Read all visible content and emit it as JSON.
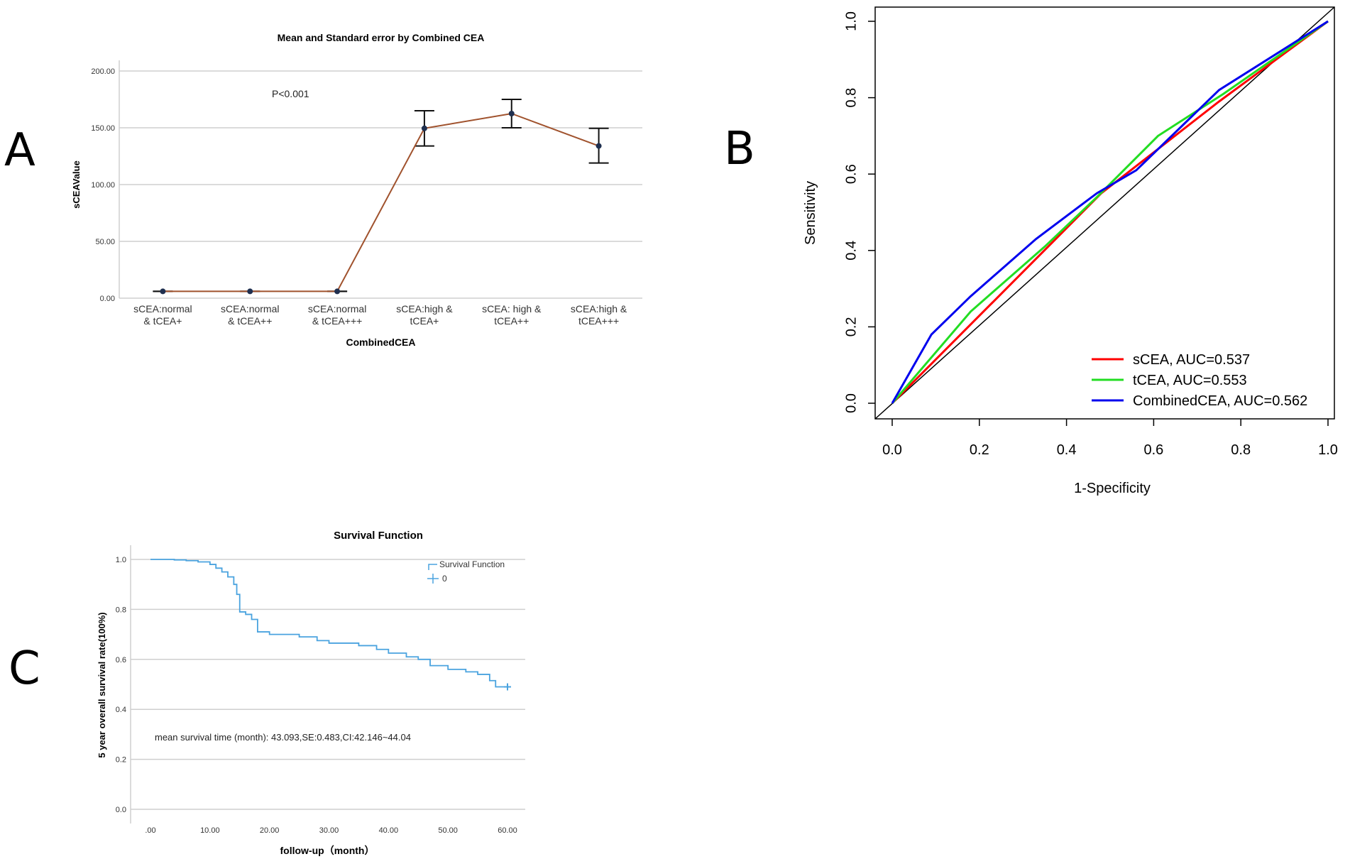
{
  "panels": {
    "a": "A",
    "b": "B",
    "c": "C"
  },
  "chart_data": [
    {
      "id": "A",
      "type": "line",
      "title": "Mean and Standard error by Combined CEA",
      "xlabel": "CombinedCEA",
      "ylabel": "sCEAValue",
      "annotation": "P<0.001",
      "categories": [
        [
          "sCEA:normal",
          "& tCEA+"
        ],
        [
          "sCEA:normal",
          "& tCEA++"
        ],
        [
          "sCEA:normal",
          "& tCEA+++"
        ],
        [
          "sCEA:high &",
          "tCEA+"
        ],
        [
          "sCEA: high &",
          "tCEA++"
        ],
        [
          "sCEA:high &",
          "tCEA+++"
        ]
      ],
      "means": [
        6,
        6,
        6,
        149.5,
        162.5,
        134
      ],
      "lower": [
        6,
        6,
        6,
        134,
        150,
        119
      ],
      "upper": [
        6,
        6,
        6,
        165,
        175,
        149.5
      ],
      "ylim": [
        0,
        200
      ],
      "yticks": [
        0,
        50,
        100,
        150,
        200
      ],
      "ytick_labels": [
        "0.00",
        "50.00",
        "100.00",
        "150.00",
        "200.00"
      ],
      "grid": true,
      "line_color": "#a0522d"
    },
    {
      "id": "B",
      "type": "line",
      "title": "",
      "xlabel": "1-Specificity",
      "ylabel": "Sensitivity",
      "xlim": [
        0,
        1
      ],
      "ylim": [
        0,
        1
      ],
      "xticks": [
        "0.0",
        "0.2",
        "0.4",
        "0.6",
        "0.8",
        "1.0"
      ],
      "yticks": [
        "0.0",
        "0.2",
        "0.4",
        "0.6",
        "0.8",
        "1.0"
      ],
      "legend_position": "bottom-right",
      "series": [
        {
          "name": "sCEA, AUC=0.537",
          "color": "#ff0000",
          "x": [
            0,
            0.48,
            0.75,
            1
          ],
          "y": [
            0,
            0.55,
            0.79,
            1
          ]
        },
        {
          "name": "tCEA, AUC=0.553",
          "color": "#22dd22",
          "x": [
            0,
            0.18,
            0.35,
            0.47,
            0.61,
            0.76,
            1
          ],
          "y": [
            0,
            0.24,
            0.41,
            0.54,
            0.7,
            0.81,
            1
          ]
        },
        {
          "name": "CombinedCEA, AUC=0.562",
          "color": "#0000ee",
          "x": [
            0,
            0.09,
            0.18,
            0.33,
            0.47,
            0.56,
            0.75,
            1
          ],
          "y": [
            0,
            0.18,
            0.28,
            0.43,
            0.55,
            0.61,
            0.82,
            1
          ]
        }
      ],
      "reference_line": {
        "x": [
          0,
          1
        ],
        "y": [
          0,
          1
        ],
        "color": "#000000"
      }
    },
    {
      "id": "C",
      "type": "line",
      "title": "Survival Function",
      "xlabel": "follow-up（month）",
      "ylabel": "5 year overall survival rate(100%)",
      "annotation": "mean survival time (month): 43.093,SE:0.483,CI:42.146~44.04",
      "xlim": [
        0,
        60
      ],
      "ylim": [
        0,
        1
      ],
      "xticks": [
        0,
        10,
        20,
        30,
        40,
        50,
        60
      ],
      "xtick_labels": [
        ".00",
        "10.00",
        "20.00",
        "30.00",
        "40.00",
        "50.00",
        "60.00"
      ],
      "yticks": [
        0,
        0.2,
        0.4,
        0.6,
        0.8,
        1.0
      ],
      "ytick_labels": [
        "0.0",
        "0.2",
        "0.4",
        "0.6",
        "0.8",
        "1.0"
      ],
      "grid": true,
      "legend": [
        "Survival Function",
        "0"
      ],
      "legend_position": "top-right",
      "color": "#4aa3df",
      "steps": [
        [
          0,
          1.0
        ],
        [
          4,
          0.998
        ],
        [
          6,
          0.995
        ],
        [
          8,
          0.99
        ],
        [
          10,
          0.98
        ],
        [
          11,
          0.965
        ],
        [
          12,
          0.95
        ],
        [
          13,
          0.93
        ],
        [
          14,
          0.9
        ],
        [
          14.5,
          0.86
        ],
        [
          15,
          0.79
        ],
        [
          16,
          0.78
        ],
        [
          17,
          0.76
        ],
        [
          18,
          0.71
        ],
        [
          20,
          0.7
        ],
        [
          25,
          0.69
        ],
        [
          28,
          0.675
        ],
        [
          30,
          0.665
        ],
        [
          35,
          0.655
        ],
        [
          38,
          0.64
        ],
        [
          40,
          0.625
        ],
        [
          43,
          0.61
        ],
        [
          45,
          0.6
        ],
        [
          47,
          0.575
        ],
        [
          50,
          0.56
        ],
        [
          53,
          0.55
        ],
        [
          55,
          0.54
        ],
        [
          57,
          0.515
        ],
        [
          58,
          0.49
        ],
        [
          60,
          0.49
        ]
      ],
      "censor_mark": [
        60,
        0.49
      ]
    }
  ]
}
